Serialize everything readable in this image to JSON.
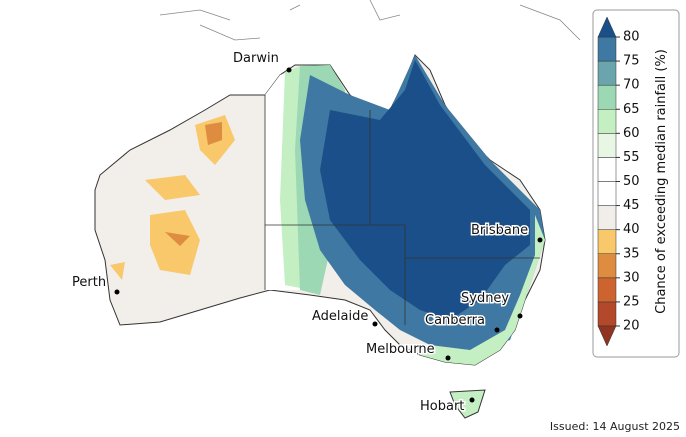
{
  "map": {
    "cities": [
      {
        "name": "Darwin"
      },
      {
        "name": "Perth"
      },
      {
        "name": "Adelaide"
      },
      {
        "name": "Melbourne"
      },
      {
        "name": "Canberra"
      },
      {
        "name": "Sydney"
      },
      {
        "name": "Brisbane"
      },
      {
        "name": "Hobart"
      }
    ]
  },
  "colorbar": {
    "label": "Chance of exceeding median rainfall (%)",
    "ticks": [
      20,
      25,
      30,
      35,
      40,
      45,
      50,
      55,
      60,
      65,
      70,
      75,
      80
    ],
    "colors": [
      "#b3482a",
      "#cd6430",
      "#dd8c40",
      "#f8c86b",
      "#f1ede8",
      "#ffffff",
      "#ffffff",
      "#e8f6e4",
      "#c3efc3",
      "#9dd8b4",
      "#6aa5ad",
      "#3f78a2"
    ],
    "under_color": "#8e3420",
    "over_color": "#1b4f89"
  },
  "footer": {
    "issued": "Issued: 14 August 2025"
  }
}
